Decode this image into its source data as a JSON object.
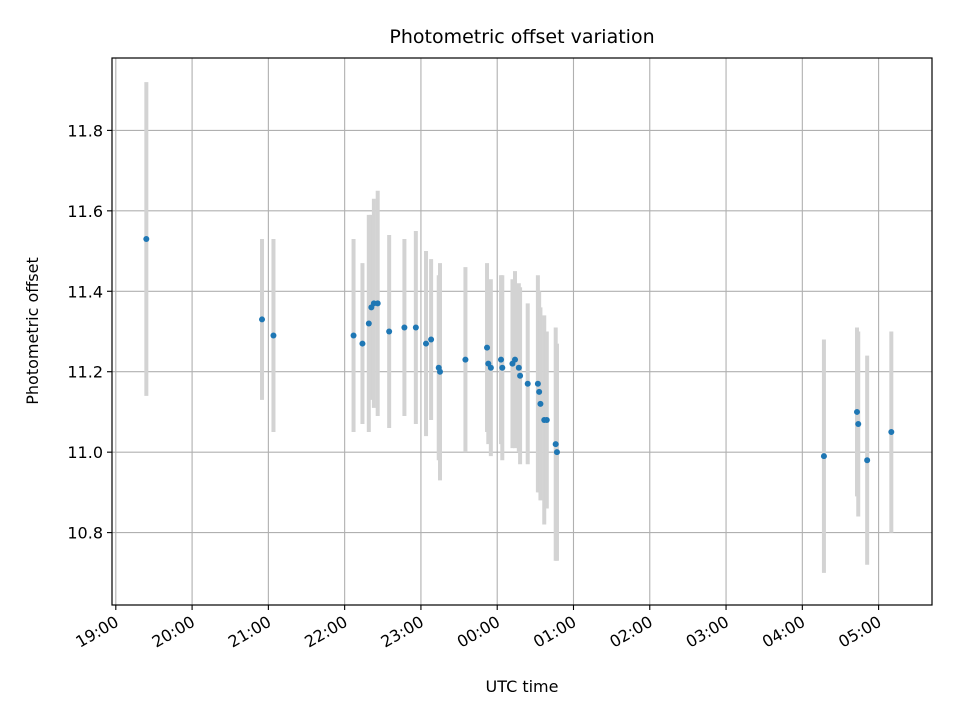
{
  "chart_data": {
    "type": "scatter",
    "title": "Photometric offset variation",
    "xlabel": "UTC time",
    "ylabel": "Photometric offset",
    "x_axis_type": "time",
    "xlim": [
      "2000-01-01T18:57",
      "2000-01-02T05:42"
    ],
    "ylim": [
      10.62,
      11.98
    ],
    "x_ticks": [
      {
        "t": "2000-01-01T19:00",
        "label": "19:00"
      },
      {
        "t": "2000-01-01T20:00",
        "label": "20:00"
      },
      {
        "t": "2000-01-01T21:00",
        "label": "21:00"
      },
      {
        "t": "2000-01-01T22:00",
        "label": "22:00"
      },
      {
        "t": "2000-01-01T23:00",
        "label": "23:00"
      },
      {
        "t": "2000-01-02T00:00",
        "label": "00:00"
      },
      {
        "t": "2000-01-02T01:00",
        "label": "01:00"
      },
      {
        "t": "2000-01-02T02:00",
        "label": "02:00"
      },
      {
        "t": "2000-01-02T03:00",
        "label": "03:00"
      },
      {
        "t": "2000-01-02T04:00",
        "label": "04:00"
      },
      {
        "t": "2000-01-02T05:00",
        "label": "05:00"
      }
    ],
    "y_ticks": [
      10.8,
      11.0,
      11.2,
      11.4,
      11.6,
      11.8
    ],
    "y_tick_labels": [
      "10.8",
      "11.0",
      "11.2",
      "11.4",
      "11.6",
      "11.8"
    ],
    "grid": true,
    "legend": "none",
    "colors": {
      "marker": "#1f77b4",
      "errorbar": "#d3d3d3",
      "grid": "#b0b0b0"
    },
    "points": [
      {
        "t": "2000-01-01T19:24",
        "y": 11.53,
        "err": 0.39
      },
      {
        "t": "2000-01-01T20:55",
        "y": 11.33,
        "err": 0.2
      },
      {
        "t": "2000-01-01T21:04",
        "y": 11.29,
        "err": 0.24
      },
      {
        "t": "2000-01-01T22:07",
        "y": 11.29,
        "err": 0.24
      },
      {
        "t": "2000-01-01T22:14",
        "y": 11.27,
        "err": 0.2
      },
      {
        "t": "2000-01-01T22:19",
        "y": 11.32,
        "err": 0.27
      },
      {
        "t": "2000-01-01T22:21",
        "y": 11.36,
        "err": 0.23
      },
      {
        "t": "2000-01-01T22:23",
        "y": 11.37,
        "err": 0.26
      },
      {
        "t": "2000-01-01T22:26",
        "y": 11.37,
        "err": 0.28
      },
      {
        "t": "2000-01-01T22:35",
        "y": 11.3,
        "err": 0.24
      },
      {
        "t": "2000-01-01T22:47",
        "y": 11.31,
        "err": 0.22
      },
      {
        "t": "2000-01-01T22:56",
        "y": 11.31,
        "err": 0.24
      },
      {
        "t": "2000-01-01T23:04",
        "y": 11.27,
        "err": 0.23
      },
      {
        "t": "2000-01-01T23:08",
        "y": 11.28,
        "err": 0.2
      },
      {
        "t": "2000-01-01T23:14",
        "y": 11.21,
        "err": 0.23
      },
      {
        "t": "2000-01-01T23:15",
        "y": 11.2,
        "err": 0.27
      },
      {
        "t": "2000-01-01T23:35",
        "y": 11.23,
        "err": 0.23
      },
      {
        "t": "2000-01-01T23:52",
        "y": 11.26,
        "err": 0.21
      },
      {
        "t": "2000-01-01T23:53",
        "y": 11.22,
        "err": 0.2
      },
      {
        "t": "2000-01-01T23:55",
        "y": 11.21,
        "err": 0.22
      },
      {
        "t": "2000-01-02T00:03",
        "y": 11.23,
        "err": 0.21
      },
      {
        "t": "2000-01-02T00:04",
        "y": 11.21,
        "err": 0.23
      },
      {
        "t": "2000-01-02T00:12",
        "y": 11.22,
        "err": 0.21
      },
      {
        "t": "2000-01-02T00:14",
        "y": 11.23,
        "err": 0.22
      },
      {
        "t": "2000-01-02T00:17",
        "y": 11.21,
        "err": 0.21
      },
      {
        "t": "2000-01-02T00:18",
        "y": 11.19,
        "err": 0.22
      },
      {
        "t": "2000-01-02T00:24",
        "y": 11.17,
        "err": 0.2
      },
      {
        "t": "2000-01-02T00:32",
        "y": 11.17,
        "err": 0.27
      },
      {
        "t": "2000-01-02T00:33",
        "y": 11.15,
        "err": 0.25
      },
      {
        "t": "2000-01-02T00:34",
        "y": 11.12,
        "err": 0.24
      },
      {
        "t": "2000-01-02T00:37",
        "y": 11.08,
        "err": 0.26
      },
      {
        "t": "2000-01-02T00:39",
        "y": 11.08,
        "err": 0.22
      },
      {
        "t": "2000-01-02T00:46",
        "y": 11.02,
        "err": 0.29
      },
      {
        "t": "2000-01-02T00:47",
        "y": 11.0,
        "err": 0.27
      },
      {
        "t": "2000-01-02T04:17",
        "y": 10.99,
        "err": 0.29
      },
      {
        "t": "2000-01-02T04:43",
        "y": 11.1,
        "err": 0.21
      },
      {
        "t": "2000-01-02T04:44",
        "y": 11.07,
        "err": 0.23
      },
      {
        "t": "2000-01-02T04:51",
        "y": 10.98,
        "err": 0.26
      },
      {
        "t": "2000-01-02T05:10",
        "y": 11.05,
        "err": 0.25
      }
    ]
  }
}
